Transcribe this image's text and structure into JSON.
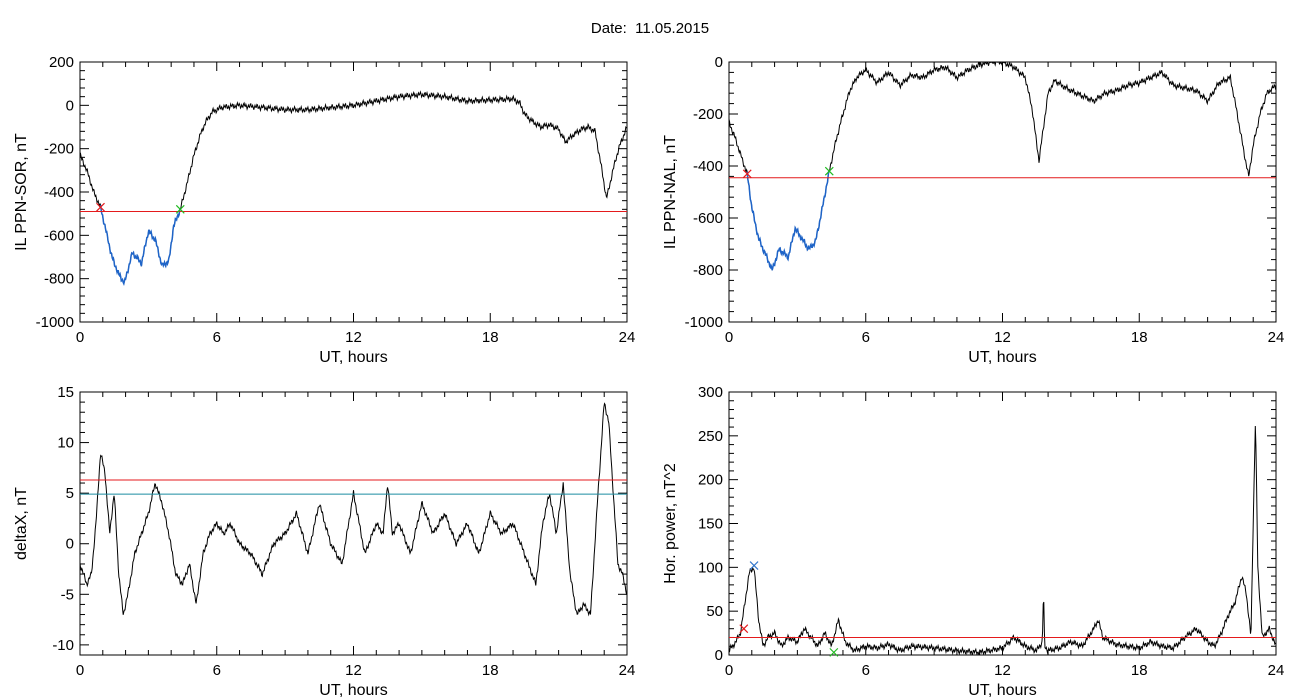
{
  "page_title": "Date:  11.05.2015",
  "colors": {
    "trace": "#000000",
    "highlight": "#1e64c8",
    "threshold_red": "#e41a1c",
    "threshold_teal": "#1a8ca0",
    "marker_red": "#e41a1c",
    "marker_green": "#22bb22",
    "marker_blue": "#3377cc"
  },
  "chart_data": [
    {
      "type": "line",
      "title": "",
      "xlabel": "UT, hours",
      "ylabel": "IL PPN-SOR, nT",
      "xlim": [
        0,
        24
      ],
      "ylim": [
        -1000,
        200
      ],
      "xticks": [
        0,
        6,
        12,
        18,
        24
      ],
      "yticks": [
        -1000,
        -800,
        -600,
        -400,
        -200,
        0,
        200
      ],
      "grid": false,
      "series": [
        {
          "x": [
            0,
            0.3,
            0.6,
            0.9,
            1.1,
            1.4,
            1.7,
            1.95,
            2.3,
            2.7,
            3.0,
            3.3,
            3.6,
            3.9,
            4.1,
            4.4,
            4.7,
            5.0,
            5.3,
            5.5,
            5.8,
            6.2,
            7,
            8,
            9,
            10,
            11,
            12,
            13,
            14,
            15,
            16,
            17,
            18,
            19,
            19.3,
            19.5,
            19.8,
            20.2,
            20.6,
            21,
            21.3,
            21.6,
            22.0,
            22.3,
            22.6,
            22.9,
            23.1,
            23.3,
            23.5,
            23.7,
            24
          ],
          "values": [
            -230,
            -300,
            -400,
            -470,
            -560,
            -700,
            -780,
            -820,
            -680,
            -730,
            -580,
            -620,
            -740,
            -720,
            -560,
            -480,
            -360,
            -230,
            -130,
            -80,
            -30,
            -10,
            0,
            -10,
            -20,
            -20,
            -10,
            0,
            20,
            40,
            50,
            40,
            20,
            25,
            30,
            10,
            -40,
            -70,
            -100,
            -90,
            -110,
            -170,
            -140,
            -110,
            -100,
            -120,
            -300,
            -430,
            -340,
            -250,
            -180,
            -100
          ]
        }
      ],
      "threshold_lines": [
        {
          "y": -490,
          "color": "#e41a1c"
        }
      ],
      "highlight_x_range": [
        0.9,
        4.4
      ],
      "markers": [
        {
          "x": 0.9,
          "y": -470,
          "color": "#e41a1c"
        },
        {
          "x": 4.4,
          "y": -480,
          "color": "#22bb22"
        }
      ]
    },
    {
      "type": "line",
      "title": "",
      "xlabel": "UT, hours",
      "ylabel": "IL PPN-NAL, nT",
      "xlim": [
        0,
        24
      ],
      "ylim": [
        -1000,
        0
      ],
      "xticks": [
        0,
        6,
        12,
        18,
        24
      ],
      "yticks": [
        -1000,
        -800,
        -600,
        -400,
        -200,
        0
      ],
      "grid": false,
      "series": [
        {
          "x": [
            0,
            0.3,
            0.6,
            0.8,
            1.0,
            1.3,
            1.6,
            1.9,
            2.2,
            2.6,
            2.9,
            3.2,
            3.5,
            3.8,
            4.1,
            4.4,
            4.7,
            5.0,
            5.3,
            5.6,
            6.0,
            6.5,
            7,
            7.5,
            8,
            8.5,
            9,
            9.5,
            10,
            10.5,
            11,
            11.5,
            12,
            12.5,
            13,
            13.3,
            13.6,
            13.8,
            14.0,
            14.3,
            14.6,
            15,
            15.5,
            16,
            16.5,
            17,
            17.5,
            18,
            18.5,
            19,
            19.5,
            20,
            20.5,
            21,
            21.5,
            22,
            22.3,
            22.6,
            22.8,
            23.0,
            23.3,
            23.6,
            24
          ],
          "values": [
            -230,
            -300,
            -380,
            -430,
            -560,
            -680,
            -740,
            -800,
            -720,
            -750,
            -640,
            -680,
            -720,
            -690,
            -560,
            -420,
            -300,
            -200,
            -110,
            -60,
            -30,
            -80,
            -40,
            -90,
            -50,
            -60,
            -30,
            -20,
            -60,
            -30,
            -10,
            0,
            0,
            -20,
            -60,
            -180,
            -380,
            -250,
            -120,
            -70,
            -90,
            -110,
            -130,
            -150,
            -120,
            -110,
            -90,
            -80,
            -60,
            -40,
            -90,
            -100,
            -110,
            -150,
            -80,
            -60,
            -200,
            -350,
            -440,
            -320,
            -200,
            -120,
            -90
          ]
        }
      ],
      "threshold_lines": [
        {
          "y": -445,
          "color": "#e41a1c"
        }
      ],
      "highlight_x_range": [
        0.8,
        4.4
      ],
      "markers": [
        {
          "x": 0.8,
          "y": -430,
          "color": "#e41a1c"
        },
        {
          "x": 4.4,
          "y": -420,
          "color": "#22bb22"
        }
      ]
    },
    {
      "type": "line",
      "title": "",
      "xlabel": "UT, hours",
      "ylabel": "deltaX, nT",
      "xlim": [
        0,
        24
      ],
      "ylim": [
        -11,
        15
      ],
      "xticks": [
        0,
        6,
        12,
        18,
        24
      ],
      "yticks": [
        -10,
        -5,
        0,
        5,
        10,
        15
      ],
      "grid": false,
      "series": [
        {
          "x": [
            0,
            0.3,
            0.5,
            0.7,
            0.9,
            1.1,
            1.3,
            1.5,
            1.7,
            1.9,
            2.1,
            2.4,
            2.7,
            3.0,
            3.3,
            3.6,
            3.9,
            4.2,
            4.5,
            4.8,
            5.1,
            5.4,
            5.7,
            6.0,
            6.3,
            6.6,
            7.0,
            7.5,
            8.0,
            8.5,
            9.0,
            9.5,
            10.0,
            10.5,
            11.0,
            11.5,
            12.0,
            12.5,
            13.0,
            13.3,
            13.5,
            13.7,
            14.0,
            14.5,
            15.0,
            15.5,
            16.0,
            16.5,
            17.0,
            17.5,
            18.0,
            18.5,
            19.0,
            19.5,
            20.0,
            20.3,
            20.6,
            20.9,
            21.2,
            21.5,
            21.8,
            22.1,
            22.4,
            22.7,
            23.0,
            23.2,
            23.4,
            23.6,
            23.8,
            24.0
          ],
          "values": [
            -2,
            -4,
            -3,
            2,
            9,
            7,
            1,
            5,
            -3,
            -7,
            -5,
            -1,
            1,
            3,
            6,
            4,
            1,
            -3,
            -4,
            -2,
            -6,
            -1,
            1,
            2,
            1,
            2,
            0,
            -1,
            -3,
            0,
            1,
            3,
            -1,
            4,
            0,
            -2,
            5,
            -1,
            2,
            1,
            6,
            1,
            2,
            -1,
            4,
            1,
            3,
            0,
            2,
            -1,
            3,
            1,
            2,
            -1,
            -4,
            2,
            5,
            1,
            6,
            -3,
            -7,
            -6,
            -7,
            4,
            14,
            12,
            5,
            -2,
            -3,
            -5
          ]
        }
      ],
      "threshold_lines": [
        {
          "y": 6.3,
          "color": "#e41a1c"
        },
        {
          "y": 4.9,
          "color": "#1a8ca0"
        }
      ],
      "markers": []
    },
    {
      "type": "line",
      "title": "",
      "xlabel": "UT, hours",
      "ylabel": "Hor. power, nT^2",
      "xlim": [
        0,
        24
      ],
      "ylim": [
        0,
        300
      ],
      "xticks": [
        0,
        6,
        12,
        18,
        24
      ],
      "yticks": [
        0,
        50,
        100,
        150,
        200,
        250,
        300
      ],
      "grid": false,
      "series": [
        {
          "x": [
            0,
            0.3,
            0.5,
            0.7,
            0.9,
            1.1,
            1.3,
            1.5,
            1.7,
            2.0,
            2.3,
            2.6,
            3.0,
            3.3,
            3.6,
            3.9,
            4.2,
            4.5,
            4.8,
            5.1,
            5.5,
            6,
            6.5,
            7,
            7.5,
            8,
            9,
            10,
            11,
            12,
            12.5,
            13,
            13.5,
            13.75,
            13.8,
            13.85,
            14,
            14.5,
            15,
            15.5,
            16,
            16.2,
            16.4,
            17,
            17.5,
            18,
            18.5,
            19,
            19.5,
            20,
            20.5,
            21,
            21.3,
            21.6,
            21.9,
            22.2,
            22.5,
            22.7,
            22.9,
            23.0,
            23.1,
            23.2,
            23.4,
            23.7,
            24
          ],
          "values": [
            5,
            15,
            25,
            60,
            95,
            100,
            40,
            10,
            20,
            25,
            10,
            20,
            15,
            30,
            20,
            10,
            25,
            10,
            40,
            15,
            5,
            10,
            8,
            12,
            5,
            10,
            8,
            5,
            3,
            8,
            20,
            10,
            5,
            15,
            75,
            10,
            5,
            8,
            15,
            10,
            30,
            40,
            20,
            12,
            10,
            8,
            15,
            10,
            8,
            20,
            30,
            15,
            10,
            25,
            45,
            60,
            90,
            70,
            20,
            150,
            270,
            100,
            20,
            30,
            10
          ]
        }
      ],
      "threshold_lines": [
        {
          "y": 20,
          "color": "#e41a1c"
        }
      ],
      "markers": [
        {
          "x": 0.65,
          "y": 30,
          "color": "#e41a1c"
        },
        {
          "x": 1.1,
          "y": 102,
          "color": "#3377cc"
        },
        {
          "x": 4.6,
          "y": 3,
          "color": "#22bb22"
        }
      ]
    }
  ]
}
